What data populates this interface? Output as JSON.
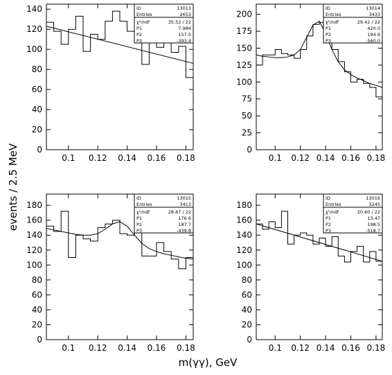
{
  "figure": {
    "ylabel": "events / 2.5 MeV",
    "xlabel": "m(γγ), GeV"
  },
  "chart_data": [
    {
      "type": "histogram",
      "xlim": [
        0.085,
        0.185
      ],
      "ylim": [
        0,
        145
      ],
      "xticks": [
        "0.1",
        "0.12",
        "0.14",
        "0.16",
        "0.18"
      ],
      "yticks": [
        "0",
        "20",
        "40",
        "60",
        "80",
        "100",
        "120",
        "140"
      ],
      "bin_edges": [
        0.085,
        0.0875,
        0.09,
        0.0925,
        0.095,
        0.0975,
        0.1,
        0.1025,
        0.105,
        0.1075,
        0.11,
        0.1125,
        0.115,
        0.1175,
        0.12,
        0.1225,
        0.125,
        0.1275,
        0.13,
        0.1325,
        0.135,
        0.1375,
        0.14,
        0.1425,
        0.145,
        0.1475,
        0.15,
        0.1525,
        0.155,
        0.1575,
        0.16,
        0.1625,
        0.165,
        0.1675,
        0.17,
        0.1725,
        0.175,
        0.1775,
        0.18,
        0.1825,
        0.185
      ],
      "counts": [
        127,
        127,
        118,
        118,
        105,
        105,
        120,
        120,
        133,
        133,
        98,
        98,
        115,
        115,
        110,
        110,
        128,
        128,
        138,
        138,
        128,
        128,
        118,
        118,
        120,
        120,
        85,
        85,
        117,
        117,
        102,
        102,
        110,
        110,
        97,
        97,
        103,
        103,
        72,
        72
      ],
      "fit": {
        "x": [
          0.085,
          0.185
        ],
        "y": [
          123,
          86
        ]
      },
      "stats": {
        "ID": "13013",
        "Entries": "2653",
        "chi2": "35.52",
        "ndf": "22",
        "P1": "7.984",
        "P2": "157.5",
        "P3": "-393.4"
      }
    },
    {
      "type": "histogram",
      "xlim": [
        0.085,
        0.185
      ],
      "ylim": [
        0,
        215
      ],
      "xticks": [
        "0.1",
        "0.12",
        "0.14",
        "0.16",
        "0.18"
      ],
      "yticks": [
        "0",
        "25",
        "50",
        "75",
        "100",
        "125",
        "150",
        "175",
        "200"
      ],
      "bin_edges": [
        0.085,
        0.0875,
        0.09,
        0.0925,
        0.095,
        0.0975,
        0.1,
        0.1025,
        0.105,
        0.1075,
        0.11,
        0.1125,
        0.115,
        0.1175,
        0.12,
        0.1225,
        0.125,
        0.1275,
        0.13,
        0.1325,
        0.135,
        0.1375,
        0.14,
        0.1425,
        0.145,
        0.1475,
        0.15,
        0.1525,
        0.155,
        0.1575,
        0.16,
        0.1625,
        0.165,
        0.1675,
        0.17,
        0.1725,
        0.175,
        0.1775,
        0.18,
        0.1825,
        0.185
      ],
      "counts": [
        125,
        125,
        140,
        140,
        140,
        140,
        148,
        148,
        142,
        142,
        140,
        140,
        135,
        135,
        148,
        148,
        168,
        168,
        185,
        185,
        188,
        188,
        190,
        190,
        148,
        148,
        130,
        130,
        115,
        115,
        100,
        100,
        104,
        104,
        98,
        98,
        92,
        92,
        78,
        78
      ],
      "fit": {
        "x": [
          0.085,
          0.09,
          0.095,
          0.1,
          0.105,
          0.11,
          0.115,
          0.12,
          0.125,
          0.13,
          0.135,
          0.14,
          0.145,
          0.15,
          0.155,
          0.16,
          0.165,
          0.17,
          0.175,
          0.18,
          0.185
        ],
        "y": [
          140,
          138,
          137,
          136,
          136,
          137,
          140,
          148,
          166,
          184,
          190,
          172,
          148,
          130,
          118,
          111,
          106,
          102,
          98,
          95,
          92
        ]
      },
      "stats": {
        "ID": "13014",
        "Entries": "3433",
        "chi2": "29.42",
        "ndf": "22",
        "P1": "420.0",
        "P2": "194.9",
        "P3": "-560.0"
      }
    },
    {
      "type": "histogram",
      "xlim": [
        0.085,
        0.185
      ],
      "ylim": [
        0,
        195
      ],
      "xticks": [
        "0.1",
        "0.12",
        "0.14",
        "0.16",
        "0.18"
      ],
      "yticks": [
        "0",
        "20",
        "40",
        "60",
        "80",
        "100",
        "120",
        "140",
        "160",
        "180"
      ],
      "bin_edges": [
        0.085,
        0.0875,
        0.09,
        0.0925,
        0.095,
        0.0975,
        0.1,
        0.1025,
        0.105,
        0.1075,
        0.11,
        0.1125,
        0.115,
        0.1175,
        0.12,
        0.1225,
        0.125,
        0.1275,
        0.13,
        0.1325,
        0.135,
        0.1375,
        0.14,
        0.1425,
        0.145,
        0.1475,
        0.15,
        0.1525,
        0.155,
        0.1575,
        0.16,
        0.1625,
        0.165,
        0.1675,
        0.17,
        0.1725,
        0.175,
        0.1775,
        0.18,
        0.1825,
        0.185
      ],
      "counts": [
        152,
        152,
        145,
        145,
        172,
        172,
        110,
        110,
        140,
        140,
        135,
        135,
        132,
        132,
        150,
        150,
        155,
        155,
        160,
        160,
        142,
        142,
        140,
        140,
        143,
        143,
        112,
        112,
        112,
        112,
        130,
        130,
        118,
        118,
        108,
        108,
        95,
        95,
        110,
        110
      ],
      "fit": {
        "x": [
          0.085,
          0.09,
          0.095,
          0.1,
          0.105,
          0.11,
          0.115,
          0.12,
          0.125,
          0.13,
          0.135,
          0.14,
          0.145,
          0.15,
          0.155,
          0.16,
          0.165,
          0.17,
          0.175,
          0.18,
          0.185
        ],
        "y": [
          149,
          147,
          145,
          143,
          141,
          140,
          140,
          142,
          148,
          155,
          158,
          152,
          140,
          129,
          122,
          118,
          115,
          113,
          111,
          109,
          108
        ]
      },
      "stats": {
        "ID": "13015",
        "Entries": "3413",
        "chi2": "28.67",
        "ndf": "22",
        "P1": "176.6",
        "P2": "187.7",
        "P3": "-439.8"
      }
    },
    {
      "type": "histogram",
      "xlim": [
        0.085,
        0.185
      ],
      "ylim": [
        0,
        195
      ],
      "xticks": [
        "0.1",
        "0.12",
        "0.14",
        "0.16",
        "0.18"
      ],
      "yticks": [
        "0",
        "20",
        "40",
        "60",
        "80",
        "100",
        "120",
        "140",
        "160",
        "180"
      ],
      "bin_edges": [
        0.085,
        0.0875,
        0.09,
        0.0925,
        0.095,
        0.0975,
        0.1,
        0.1025,
        0.105,
        0.1075,
        0.11,
        0.1125,
        0.115,
        0.1175,
        0.12,
        0.1225,
        0.125,
        0.1275,
        0.13,
        0.1325,
        0.135,
        0.1375,
        0.14,
        0.1425,
        0.145,
        0.1475,
        0.15,
        0.1525,
        0.155,
        0.1575,
        0.16,
        0.1625,
        0.165,
        0.1675,
        0.17,
        0.1725,
        0.175,
        0.1775,
        0.18,
        0.1825,
        0.185
      ],
      "counts": [
        155,
        155,
        148,
        148,
        158,
        158,
        150,
        150,
        172,
        172,
        128,
        128,
        140,
        140,
        143,
        143,
        140,
        140,
        128,
        128,
        136,
        136,
        125,
        125,
        138,
        138,
        112,
        112,
        104,
        104,
        118,
        118,
        125,
        125,
        104,
        104,
        118,
        118,
        105,
        105
      ],
      "fit": {
        "x": [
          0.085,
          0.185
        ],
        "y": [
          155,
          105
        ]
      },
      "stats": {
        "ID": "13016",
        "Entries": "3245",
        "chi2": "20.60",
        "ndf": "22",
        "P1": "13.47",
        "P2": "198.5",
        "P3": "-518.7"
      }
    }
  ]
}
